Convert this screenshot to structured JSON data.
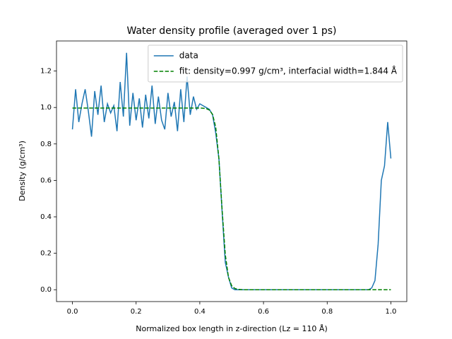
{
  "chart_data": {
    "type": "line",
    "title": "Water density profile (averaged over 1 ps)",
    "x_label": "Normalized box length in z-direction (Lz = 110 Å)",
    "y_label": "Density (g/cm³)",
    "xlim": [
      -0.05,
      1.05
    ],
    "ylim": [
      -0.065,
      1.365
    ],
    "xticks": [
      {
        "value": 0,
        "label": "0.0"
      },
      {
        "value": 0.2,
        "label": "0.2"
      },
      {
        "value": 0.4,
        "label": "0.4"
      },
      {
        "value": 0.6,
        "label": "0.6"
      },
      {
        "value": 0.8,
        "label": "0.8"
      },
      {
        "value": 1,
        "label": "1.0"
      }
    ],
    "yticks": [
      {
        "value": 0,
        "label": "0.0"
      },
      {
        "value": 0.2,
        "label": "0.2"
      },
      {
        "value": 0.4,
        "label": "0.4"
      },
      {
        "value": 0.6,
        "label": "0.6"
      },
      {
        "value": 0.8,
        "label": "0.8"
      },
      {
        "value": 1,
        "label": "1.0"
      },
      {
        "value": 1.2,
        "label": "1.2"
      }
    ],
    "grid": false,
    "legend_loc": "upper right",
    "x": [
      0,
      0.01,
      0.02,
      0.03,
      0.04,
      0.05,
      0.06,
      0.07,
      0.08,
      0.09,
      0.1,
      0.11,
      0.12,
      0.13,
      0.14,
      0.15,
      0.16,
      0.17,
      0.18,
      0.19,
      0.2,
      0.21,
      0.22,
      0.23,
      0.24,
      0.25,
      0.26,
      0.27,
      0.28,
      0.29,
      0.3,
      0.31,
      0.32,
      0.33,
      0.34,
      0.35,
      0.36,
      0.37,
      0.38,
      0.39,
      0.4,
      0.41,
      0.42,
      0.43,
      0.44,
      0.45,
      0.46,
      0.47,
      0.48,
      0.49,
      0.5,
      0.51,
      0.52,
      0.53,
      0.54,
      0.55,
      0.56,
      0.57,
      0.58,
      0.59,
      0.6,
      0.61,
      0.62,
      0.63,
      0.64,
      0.65,
      0.66,
      0.67,
      0.68,
      0.69,
      0.7,
      0.71,
      0.72,
      0.73,
      0.74,
      0.75,
      0.76,
      0.77,
      0.78,
      0.79,
      0.8,
      0.81,
      0.82,
      0.83,
      0.84,
      0.85,
      0.86,
      0.87,
      0.88,
      0.89,
      0.9,
      0.91,
      0.92,
      0.93,
      0.94,
      0.95,
      0.96,
      0.97,
      0.98,
      0.99,
      1
    ],
    "series": [
      {
        "name": "data",
        "color": "#1f77b4",
        "dashed": false,
        "values": [
          0.88,
          1.1,
          0.92,
          1.02,
          1.1,
          0.98,
          0.84,
          1.09,
          0.96,
          1.12,
          0.92,
          1.02,
          0.97,
          1.01,
          0.87,
          1.14,
          0.95,
          1.3,
          0.9,
          1.08,
          0.93,
          1.05,
          0.89,
          1.07,
          0.94,
          1.12,
          0.91,
          1.06,
          0.93,
          0.88,
          1.08,
          0.95,
          1.03,
          0.87,
          1.1,
          0.92,
          1.17,
          0.96,
          1.06,
          0.99,
          1.02,
          1.01,
          1,
          0.99,
          0.96,
          0.86,
          0.72,
          0.43,
          0.15,
          0.07,
          0.01,
          0,
          0,
          0,
          0,
          0,
          0,
          0,
          0,
          0,
          0,
          0,
          0,
          0,
          0,
          0,
          0,
          0,
          0,
          0,
          0,
          0,
          0,
          0,
          0,
          0,
          0,
          0,
          0,
          0,
          0,
          0,
          0,
          0,
          0,
          0,
          0,
          0,
          0,
          0,
          0,
          0,
          0,
          0,
          0.01,
          0.05,
          0.25,
          0.6,
          0.68,
          0.92,
          0.72
        ]
      },
      {
        "name": "fit: density=0.997 g/cm³, interfacial width=1.844 Å",
        "color": "#008000",
        "dashed": true,
        "values": [
          0.997,
          0.997,
          0.997,
          0.997,
          0.997,
          0.997,
          0.997,
          0.997,
          0.997,
          0.997,
          0.997,
          0.997,
          0.997,
          0.997,
          0.997,
          0.997,
          0.997,
          0.997,
          0.997,
          0.997,
          0.997,
          0.997,
          0.997,
          0.997,
          0.997,
          0.997,
          0.997,
          0.997,
          0.997,
          0.997,
          0.997,
          0.997,
          0.997,
          0.997,
          0.997,
          0.997,
          0.997,
          0.997,
          0.997,
          0.997,
          0.997,
          0.996,
          0.994,
          0.986,
          0.962,
          0.892,
          0.719,
          0.44,
          0.193,
          0.068,
          0.022,
          0.007,
          0.002,
          0.001,
          0,
          0,
          0,
          0,
          0,
          0,
          0,
          0,
          0,
          0,
          0,
          0,
          0,
          0,
          0,
          0,
          0,
          0,
          0,
          0,
          0,
          0,
          0,
          0,
          0,
          0,
          0,
          0,
          0,
          0,
          0,
          0,
          0,
          0,
          0,
          0,
          0,
          0,
          0,
          0,
          0,
          0,
          0,
          0,
          0,
          0,
          0
        ]
      }
    ]
  }
}
